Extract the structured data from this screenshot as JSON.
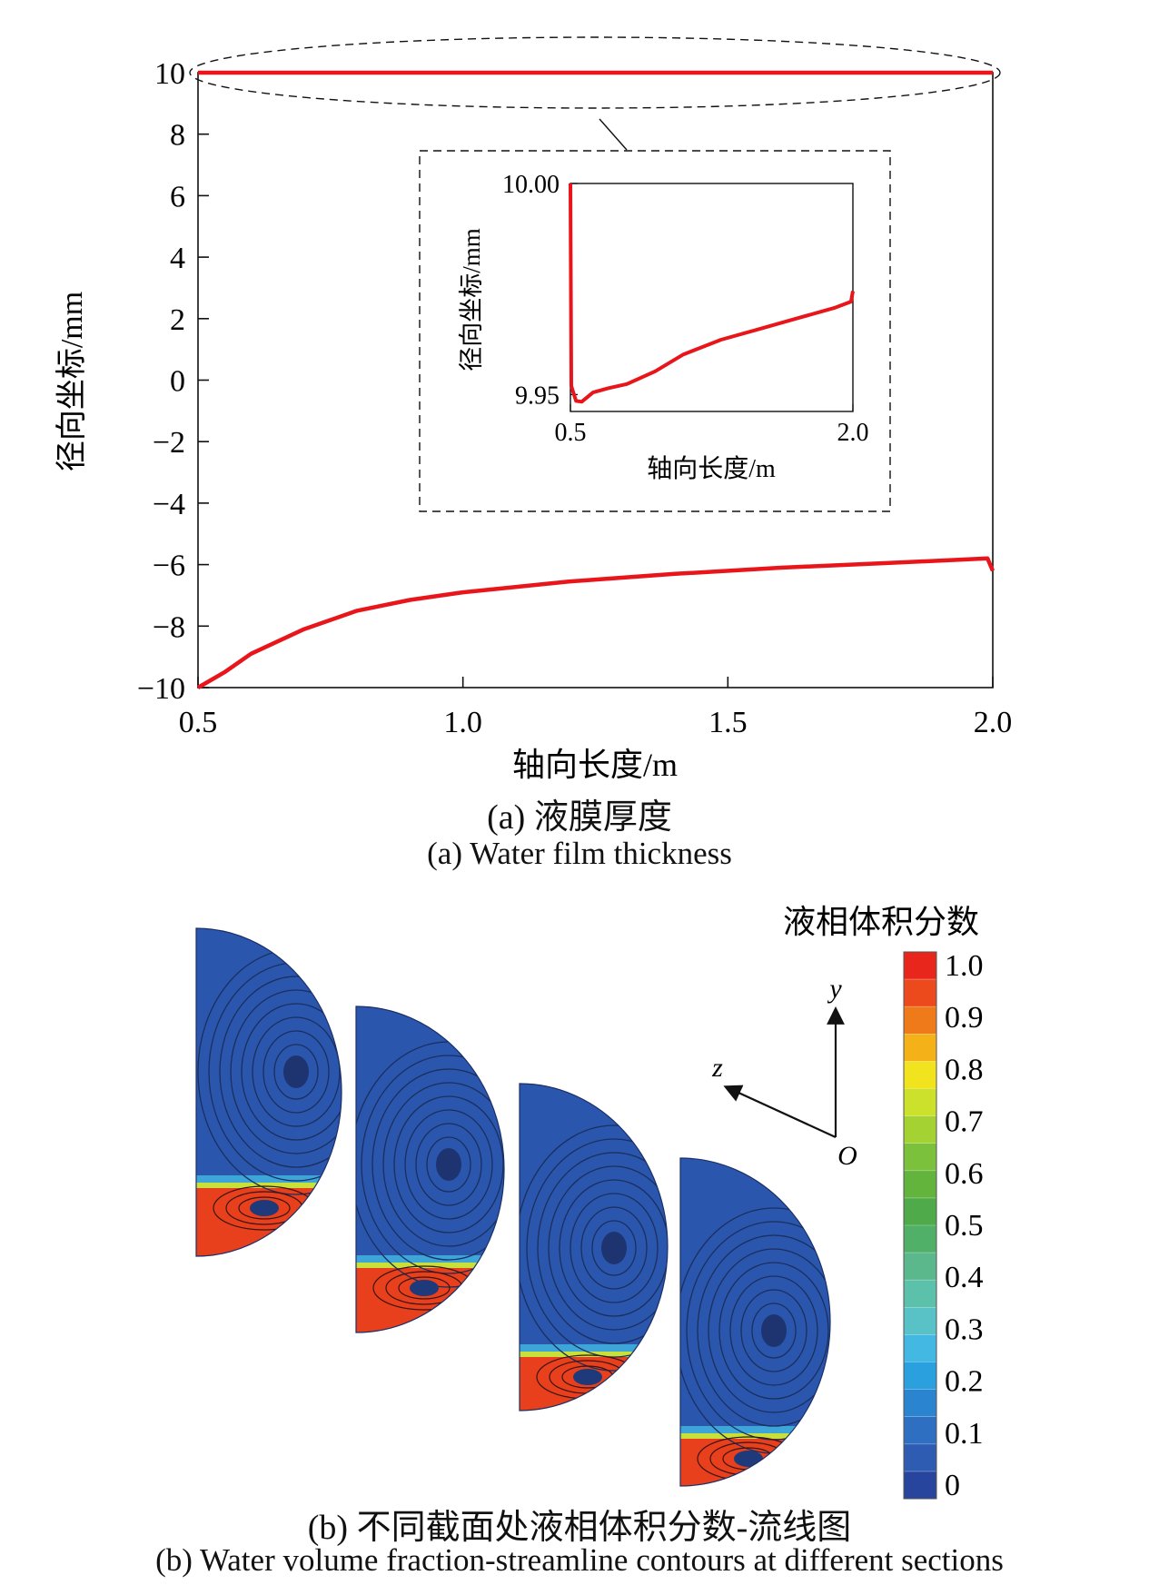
{
  "chart_data": [
    {
      "type": "line",
      "xlabel": "轴向长度/m",
      "ylabel": "径向坐标/mm",
      "xlim": [
        0.5,
        2.0
      ],
      "ylim": [
        -10,
        10
      ],
      "xticks": [
        "0.5",
        "1.0",
        "1.5",
        "2.0"
      ],
      "yticks": [
        "10",
        "8",
        "6",
        "4",
        "2",
        "0",
        "−2",
        "−4",
        "−6",
        "−8",
        "−10"
      ],
      "series": [
        {
          "color": "#e8161b",
          "x": [
            0.5,
            2.0
          ],
          "y": [
            10.0,
            10.0
          ]
        },
        {
          "color": "#e8161b",
          "x": [
            0.5,
            0.55,
            0.6,
            0.7,
            0.8,
            0.9,
            1.0,
            1.2,
            1.4,
            1.6,
            1.8,
            1.99,
            2.0
          ],
          "y": [
            -10.0,
            -9.5,
            -8.9,
            -8.1,
            -7.5,
            -7.15,
            -6.9,
            -6.55,
            -6.3,
            -6.1,
            -5.95,
            -5.8,
            -6.2
          ]
        }
      ]
    },
    {
      "type": "line",
      "role": "inset",
      "xlabel": "轴向长度/m",
      "ylabel": "径向坐标/mm",
      "xlim": [
        0.5,
        2.0
      ],
      "ylim": [
        9.946,
        10.0
      ],
      "xticks": [
        "0.5",
        "2.0"
      ],
      "yticks": [
        "10.00",
        "9.95"
      ],
      "series": [
        {
          "color": "#e8161b",
          "x": [
            0.5,
            0.505,
            0.53,
            0.56,
            0.62,
            0.7,
            0.8,
            0.95,
            1.1,
            1.3,
            1.5,
            1.7,
            1.9,
            1.99,
            2.0
          ],
          "y": [
            10.0,
            9.952,
            9.9485,
            9.9483,
            9.9505,
            9.9515,
            9.9525,
            9.9555,
            9.9595,
            9.963,
            9.9655,
            9.968,
            9.9705,
            9.972,
            9.9745
          ]
        }
      ]
    }
  ],
  "caption_a_cn": "(a) 液膜厚度",
  "caption_a_en": "(a) Water film thickness",
  "colorbar": {
    "title": "液相体积分数",
    "labels": [
      "1.0",
      "0.9",
      "0.8",
      "0.7",
      "0.6",
      "0.5",
      "0.4",
      "0.3",
      "0.2",
      "0.1",
      "0"
    ],
    "colors": [
      "#e8261c",
      "#ec4a1c",
      "#ef7a1a",
      "#f4b118",
      "#f1e41f",
      "#cce12c",
      "#a3d232",
      "#7cc13b",
      "#62b43d",
      "#4faa49",
      "#50b068",
      "#5bb88c",
      "#5bc1aa",
      "#58c2c6",
      "#42b8e2",
      "#2ba0de",
      "#2b84cf",
      "#2e6fc2",
      "#2d5cb2",
      "#27459c"
    ]
  },
  "axes": {
    "y": "y",
    "z": "z",
    "origin": "O"
  },
  "caption_b_cn": "(b) 不同截面处液相体积分数-流线图",
  "caption_b_en": "(b) Water volume fraction-streamline contours at different sections"
}
